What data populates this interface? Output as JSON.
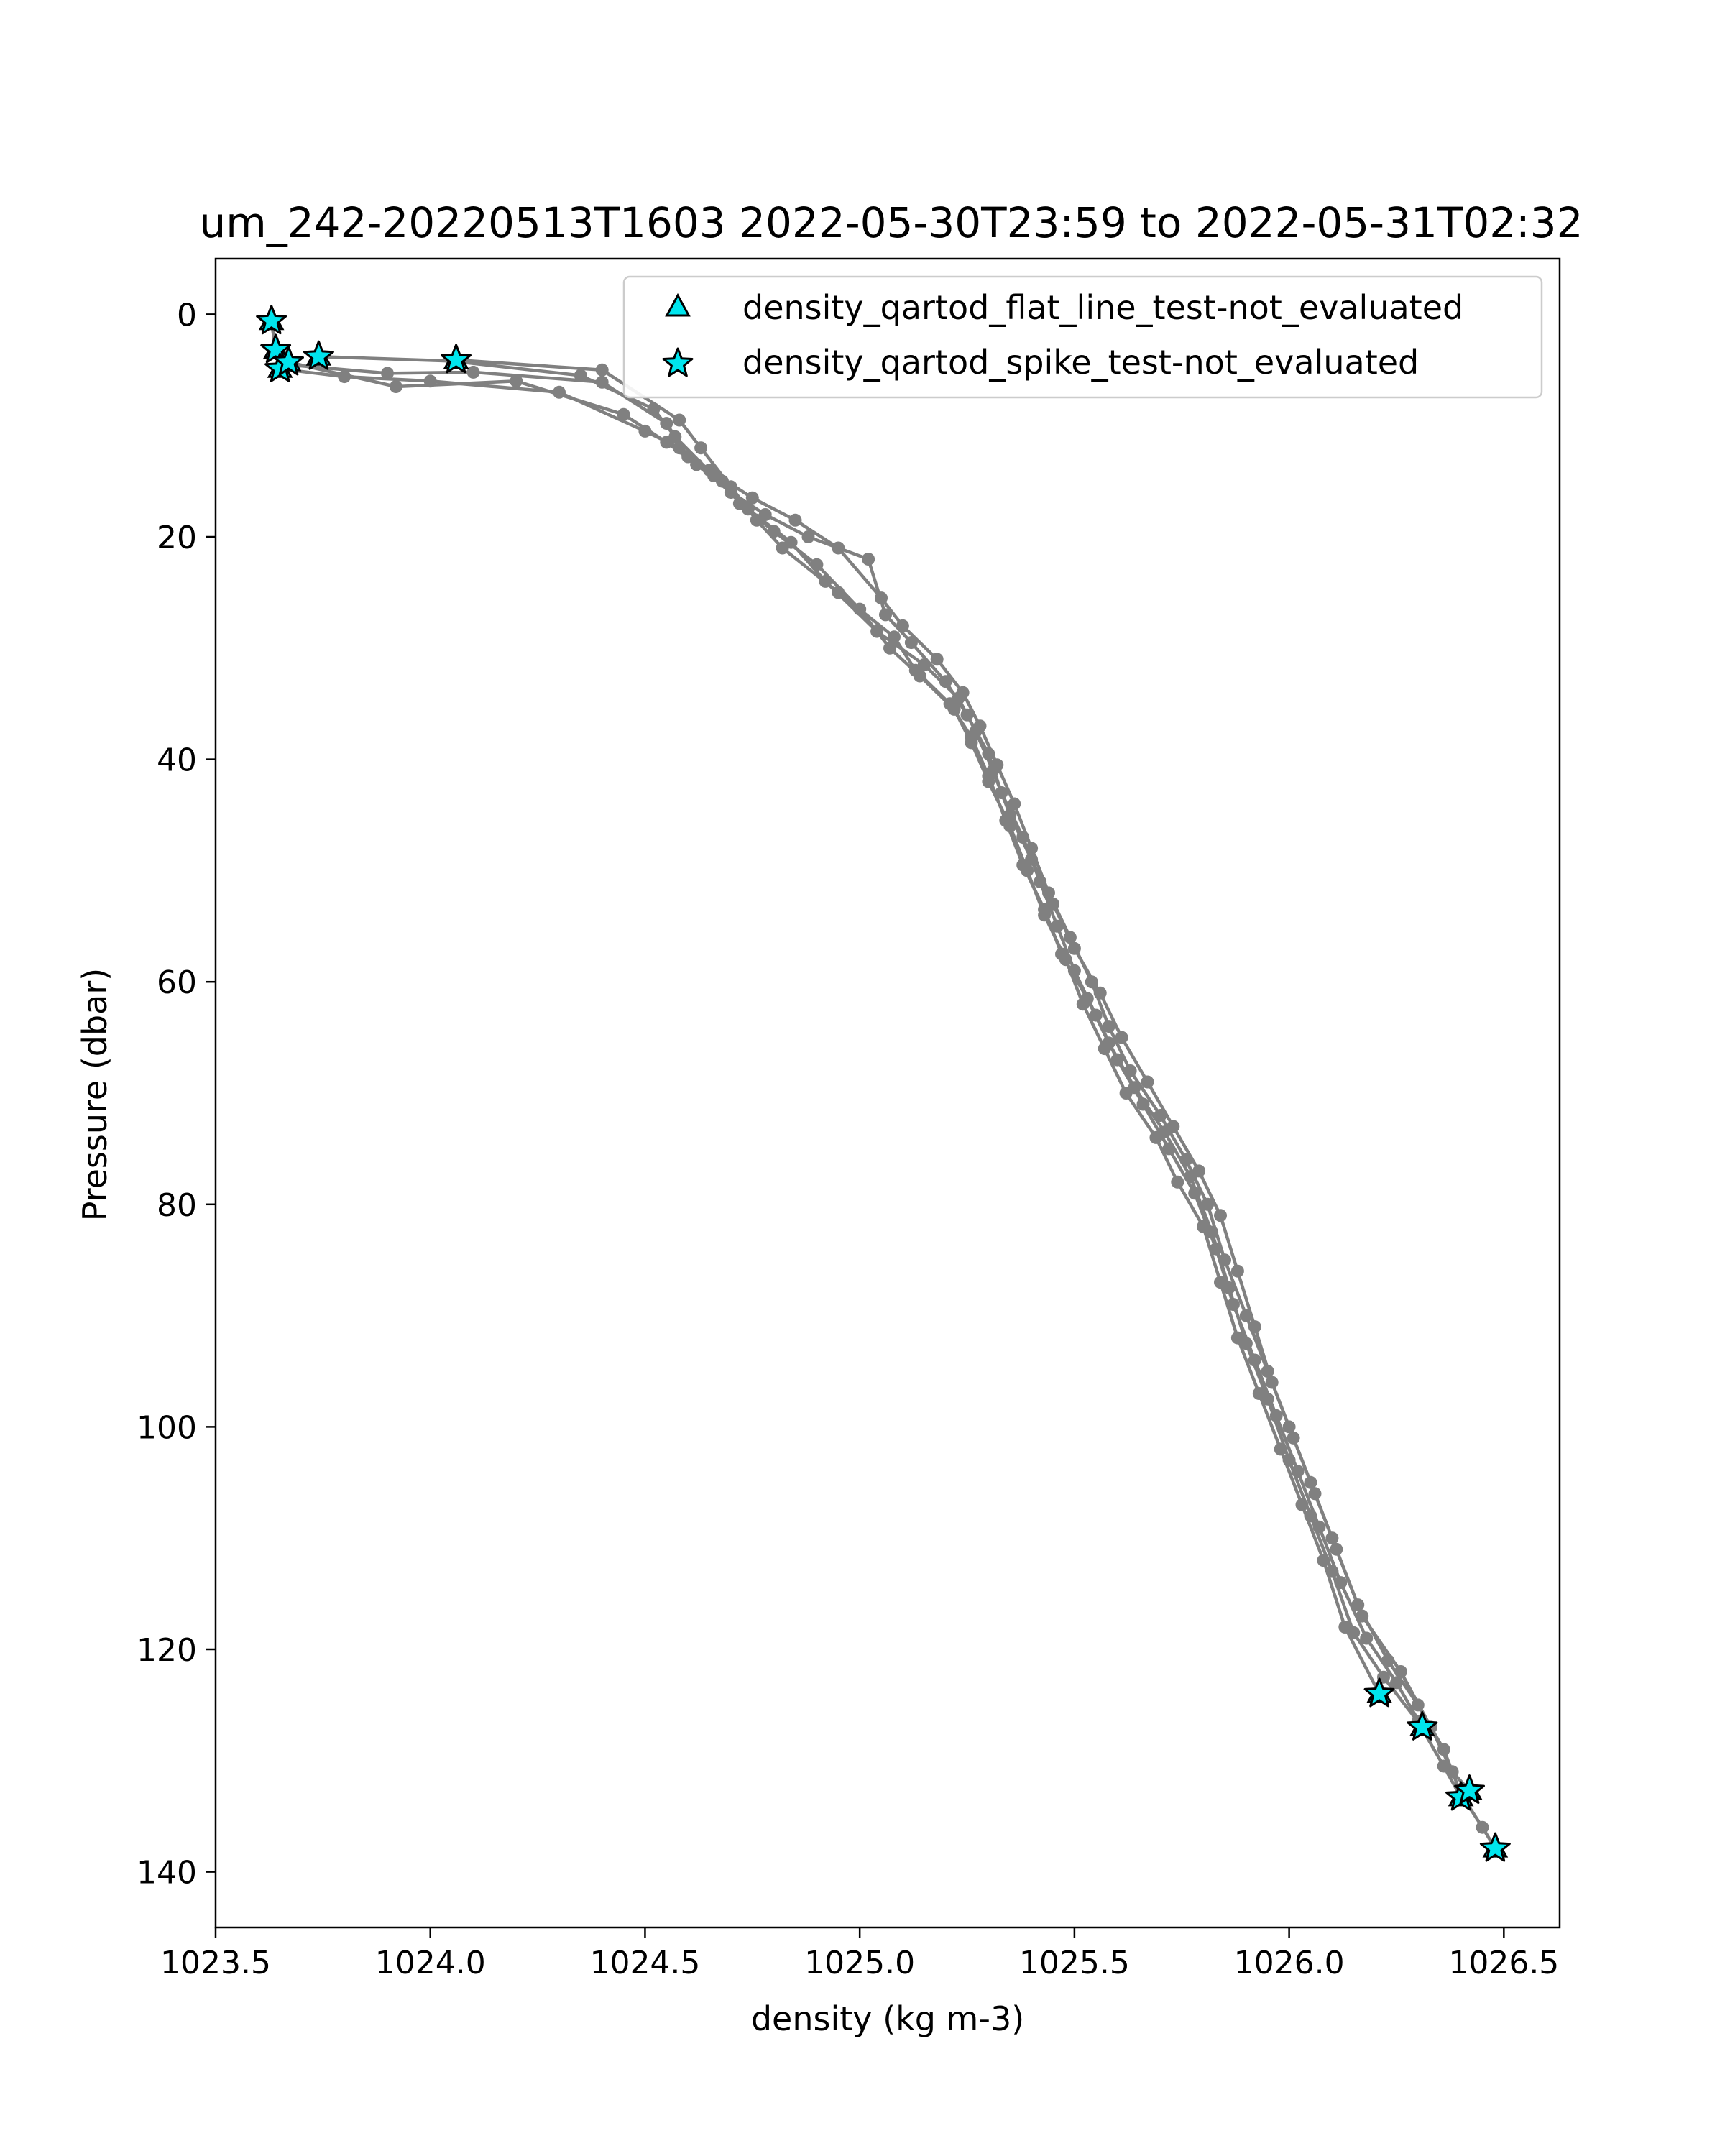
{
  "chart_data": {
    "type": "scatter",
    "title": "um_242-20220513T1603 2022-05-30T23:59 to 2022-05-31T02:32",
    "xlabel": "density (kg m-3)",
    "ylabel": "Pressure (dbar)",
    "xlim": [
      1023.5,
      1026.63
    ],
    "ylim": [
      145,
      -5
    ],
    "y_inverted": true,
    "x_ticks": [
      1023.5,
      1024.0,
      1024.5,
      1025.0,
      1025.5,
      1026.0,
      1026.5
    ],
    "x_tick_labels": [
      "1023.5",
      "1024.0",
      "1024.5",
      "1025.0",
      "1025.5",
      "1026.0",
      "1026.5"
    ],
    "y_ticks": [
      0,
      20,
      40,
      60,
      80,
      100,
      120,
      140
    ],
    "y_tick_labels": [
      "0",
      "20",
      "40",
      "60",
      "80",
      "100",
      "120",
      "140"
    ],
    "grid": false,
    "legend_position": "upper-right",
    "colors": {
      "profile": "#808080",
      "marker_fill": "#00e5ee",
      "marker_edge": "#000000"
    },
    "legend": [
      {
        "label": "density_qartod_flat_line_test-not_evaluated",
        "marker": "triangle"
      },
      {
        "label": "density_qartod_spike_test-not_evaluated",
        "marker": "star"
      }
    ],
    "series": [
      {
        "points": [
          [
            1023.63,
            0.6
          ],
          [
            1023.64,
            3.3
          ],
          [
            1023.66,
            4.5
          ],
          [
            1023.9,
            5.3
          ],
          [
            1024.1,
            5.2
          ],
          [
            1024.4,
            6.1
          ],
          [
            1024.55,
            9.8
          ],
          [
            1024.6,
            12.8
          ],
          [
            1024.65,
            14.0
          ],
          [
            1024.75,
            16.5
          ],
          [
            1024.85,
            18.5
          ],
          [
            1024.95,
            21.0
          ],
          [
            1025.05,
            25.5
          ],
          [
            1025.1,
            28.0
          ],
          [
            1025.18,
            31.0
          ],
          [
            1025.24,
            34.0
          ],
          [
            1025.28,
            37.0
          ],
          [
            1025.32,
            40.5
          ],
          [
            1025.36,
            44.0
          ],
          [
            1025.4,
            48.0
          ],
          [
            1025.44,
            52.0
          ],
          [
            1025.49,
            56.0
          ],
          [
            1025.54,
            60.0
          ],
          [
            1025.58,
            64.0
          ],
          [
            1025.63,
            68.0
          ],
          [
            1025.7,
            72.0
          ],
          [
            1025.76,
            76.0
          ],
          [
            1025.81,
            80.0
          ],
          [
            1025.85,
            85.0
          ],
          [
            1025.9,
            90.0
          ],
          [
            1025.95,
            95.0
          ],
          [
            1026.0,
            100.0
          ],
          [
            1026.05,
            105.0
          ],
          [
            1026.1,
            110.0
          ],
          [
            1026.16,
            116.0
          ],
          [
            1026.23,
            121.0
          ],
          [
            1026.3,
            125.0
          ],
          [
            1026.36,
            129.0
          ],
          [
            1026.4,
            133.0
          ],
          [
            1026.45,
            136.0
          ],
          [
            1026.48,
            137.9
          ]
        ]
      },
      {
        "points": [
          [
            1023.65,
            4.9
          ],
          [
            1023.8,
            5.6
          ],
          [
            1024.0,
            6.0
          ],
          [
            1024.3,
            7.0
          ],
          [
            1024.5,
            10.5
          ],
          [
            1024.58,
            12.0
          ],
          [
            1024.68,
            15.0
          ],
          [
            1024.72,
            17.0
          ],
          [
            1024.8,
            19.5
          ],
          [
            1024.9,
            22.5
          ],
          [
            1025.0,
            26.5
          ],
          [
            1025.07,
            30.0
          ],
          [
            1025.14,
            32.5
          ],
          [
            1025.22,
            35.5
          ],
          [
            1025.26,
            38.5
          ],
          [
            1025.3,
            42.0
          ],
          [
            1025.35,
            46.0
          ],
          [
            1025.39,
            50.0
          ],
          [
            1025.43,
            54.0
          ],
          [
            1025.48,
            58.0
          ],
          [
            1025.52,
            62.0
          ],
          [
            1025.57,
            66.0
          ],
          [
            1025.62,
            70.0
          ],
          [
            1025.69,
            74.0
          ],
          [
            1025.74,
            78.0
          ],
          [
            1025.8,
            82.0
          ],
          [
            1025.84,
            87.0
          ],
          [
            1025.88,
            92.0
          ],
          [
            1025.93,
            97.0
          ],
          [
            1025.98,
            102.0
          ],
          [
            1026.03,
            107.0
          ],
          [
            1026.08,
            112.0
          ],
          [
            1026.13,
            118.0
          ],
          [
            1026.21,
            124.0
          ]
        ]
      },
      {
        "points": [
          [
            1023.67,
            4.3
          ],
          [
            1023.92,
            6.5
          ],
          [
            1024.2,
            6.0
          ],
          [
            1024.45,
            9.0
          ],
          [
            1024.55,
            11.5
          ],
          [
            1024.62,
            13.5
          ],
          [
            1024.7,
            16.0
          ],
          [
            1024.78,
            18.0
          ],
          [
            1024.88,
            20.0
          ],
          [
            1025.02,
            22.0
          ],
          [
            1025.06,
            27.0
          ],
          [
            1025.12,
            29.5
          ],
          [
            1025.2,
            33.0
          ],
          [
            1025.25,
            36.0
          ],
          [
            1025.3,
            39.5
          ],
          [
            1025.33,
            43.0
          ],
          [
            1025.38,
            47.0
          ],
          [
            1025.42,
            51.0
          ],
          [
            1025.46,
            55.0
          ],
          [
            1025.5,
            59.0
          ],
          [
            1025.55,
            63.0
          ],
          [
            1025.6,
            67.0
          ],
          [
            1025.66,
            71.0
          ],
          [
            1025.72,
            75.0
          ],
          [
            1025.78,
            79.0
          ],
          [
            1025.83,
            84.0
          ],
          [
            1025.87,
            89.0
          ],
          [
            1025.92,
            94.0
          ],
          [
            1025.97,
            99.0
          ],
          [
            1026.02,
            104.0
          ],
          [
            1026.07,
            109.0
          ],
          [
            1026.12,
            114.0
          ],
          [
            1026.18,
            119.0
          ],
          [
            1026.25,
            123.0
          ],
          [
            1026.31,
            127.0
          ]
        ]
      },
      {
        "points": [
          [
            1023.74,
            3.8
          ],
          [
            1024.05,
            4.2
          ],
          [
            1024.35,
            5.5
          ],
          [
            1024.52,
            8.5
          ],
          [
            1024.57,
            11.0
          ],
          [
            1024.66,
            14.5
          ],
          [
            1024.74,
            17.5
          ],
          [
            1024.84,
            20.5
          ],
          [
            1024.92,
            24.0
          ],
          [
            1025.04,
            28.5
          ],
          [
            1025.15,
            31.5
          ],
          [
            1025.23,
            34.5
          ],
          [
            1025.27,
            37.5
          ],
          [
            1025.31,
            41.0
          ],
          [
            1025.35,
            45.0
          ],
          [
            1025.4,
            49.0
          ],
          [
            1025.45,
            53.0
          ],
          [
            1025.5,
            57.0
          ],
          [
            1025.56,
            61.0
          ],
          [
            1025.61,
            65.0
          ],
          [
            1025.67,
            69.0
          ],
          [
            1025.73,
            73.0
          ],
          [
            1025.79,
            77.0
          ],
          [
            1025.84,
            81.0
          ],
          [
            1025.88,
            86.0
          ],
          [
            1025.92,
            91.0
          ],
          [
            1025.96,
            96.0
          ],
          [
            1026.01,
            101.0
          ],
          [
            1026.06,
            106.0
          ],
          [
            1026.11,
            111.0
          ],
          [
            1026.17,
            117.0
          ],
          [
            1026.26,
            122.0
          ],
          [
            1026.33,
            127.0
          ],
          [
            1026.38,
            131.0
          ],
          [
            1026.42,
            132.7
          ]
        ]
      },
      {
        "points": [
          [
            1024.06,
            4.1
          ],
          [
            1024.4,
            5.0
          ],
          [
            1024.58,
            9.5
          ],
          [
            1024.63,
            12.0
          ],
          [
            1024.7,
            15.5
          ],
          [
            1024.76,
            18.5
          ],
          [
            1024.82,
            21.0
          ],
          [
            1024.95,
            25.0
          ],
          [
            1025.08,
            29.0
          ],
          [
            1025.13,
            32.0
          ],
          [
            1025.21,
            35.0
          ],
          [
            1025.26,
            38.0
          ],
          [
            1025.3,
            41.5
          ],
          [
            1025.34,
            45.5
          ],
          [
            1025.38,
            49.5
          ],
          [
            1025.43,
            53.5
          ],
          [
            1025.47,
            57.5
          ],
          [
            1025.53,
            61.5
          ],
          [
            1025.58,
            65.5
          ],
          [
            1025.64,
            69.5
          ],
          [
            1025.71,
            73.5
          ],
          [
            1025.77,
            77.5
          ],
          [
            1025.82,
            82.5
          ],
          [
            1025.86,
            87.5
          ],
          [
            1025.9,
            92.5
          ],
          [
            1025.95,
            97.5
          ],
          [
            1026.0,
            103.0
          ],
          [
            1026.05,
            108.0
          ],
          [
            1026.1,
            113.0
          ],
          [
            1026.15,
            118.5
          ],
          [
            1026.22,
            122.5
          ],
          [
            1026.3,
            126.5
          ],
          [
            1026.36,
            130.5
          ],
          [
            1026.4,
            133.3
          ]
        ]
      }
    ],
    "spike_markers": [
      [
        1023.63,
        0.6
      ],
      [
        1023.64,
        3.2
      ],
      [
        1023.65,
        4.9
      ],
      [
        1023.67,
        4.3
      ],
      [
        1023.74,
        3.8
      ],
      [
        1024.06,
        4.1
      ],
      [
        1026.21,
        124.0
      ],
      [
        1026.31,
        127.0
      ],
      [
        1026.4,
        133.3
      ],
      [
        1026.42,
        132.7
      ],
      [
        1026.48,
        137.9
      ]
    ],
    "flat_line_markers": [
      [
        1023.63,
        0.6
      ],
      [
        1023.64,
        3.2
      ],
      [
        1023.65,
        4.9
      ],
      [
        1023.67,
        4.3
      ],
      [
        1023.74,
        3.8
      ],
      [
        1024.06,
        4.1
      ],
      [
        1026.21,
        124.0
      ],
      [
        1026.31,
        127.0
      ],
      [
        1026.4,
        133.3
      ],
      [
        1026.42,
        132.7
      ],
      [
        1026.48,
        137.9
      ]
    ]
  }
}
